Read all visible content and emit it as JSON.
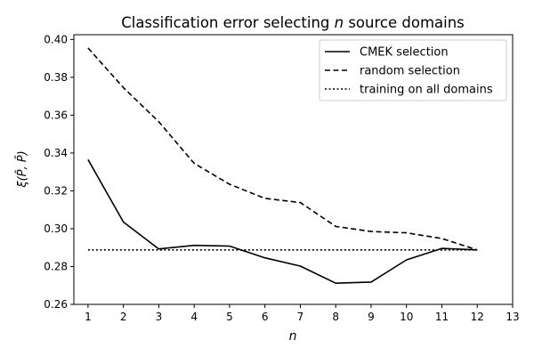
{
  "chart_data": {
    "type": "line",
    "title_prefix": "Classification error selecting ",
    "title_var": "n",
    "title_suffix": " source domains",
    "xlabel": "n",
    "ylabel": "ξ(P̂, P̄)",
    "xlim": [
      0.6,
      13.0
    ],
    "ylim": [
      0.26,
      0.4025
    ],
    "xticks": [
      1,
      2,
      3,
      4,
      5,
      6,
      7,
      8,
      9,
      10,
      11,
      12,
      13
    ],
    "yticks": [
      "0.26",
      "0.28",
      "0.30",
      "0.32",
      "0.34",
      "0.36",
      "0.38",
      "0.40"
    ],
    "grid": false,
    "legend_position": "top-right",
    "x": [
      1,
      2,
      3,
      4,
      5,
      6,
      7,
      8,
      9,
      10,
      11,
      12
    ],
    "series": [
      {
        "name": "CMEK selection",
        "style": "solid",
        "color": "#000000",
        "values": [
          0.3365,
          0.3035,
          0.2893,
          0.2912,
          0.2908,
          0.2846,
          0.2802,
          0.2712,
          0.2718,
          0.2835,
          0.2896,
          0.2888
        ]
      },
      {
        "name": "random selection",
        "style": "dashed",
        "color": "#000000",
        "values": [
          0.3955,
          0.3745,
          0.3565,
          0.3345,
          0.3235,
          0.316,
          0.3138,
          0.3012,
          0.2985,
          0.2978,
          0.2948,
          0.2888
        ]
      },
      {
        "name": "training on all domains",
        "style": "dotted",
        "color": "#000000",
        "values": [
          0.2888,
          0.2888,
          0.2888,
          0.2888,
          0.2888,
          0.2888,
          0.2888,
          0.2888,
          0.2888,
          0.2888,
          0.2888,
          0.2888
        ]
      }
    ]
  }
}
